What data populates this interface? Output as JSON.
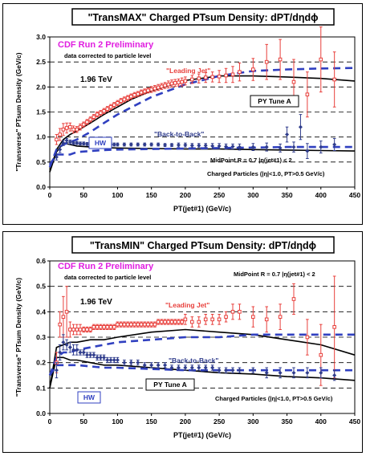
{
  "chart_data": [
    {
      "type": "scatter",
      "title": "\"TransMAX\" Charged PTsum Density: dPT/dηdϕ",
      "xlabel": "PT(jet#1)  (GeV/c)",
      "ylabel": "\"Transverse\" PTsum Density (GeV/c)",
      "xlim": [
        0,
        450
      ],
      "ylim": [
        0,
        3.0
      ],
      "x_ticks": [
        "0",
        "50",
        "100",
        "150",
        "200",
        "250",
        "300",
        "350",
        "400",
        "450"
      ],
      "y_ticks": [
        "0.0",
        "0.5",
        "1.0",
        "1.5",
        "2.0",
        "2.5",
        "3.0"
      ],
      "grid": "horizontal dashed",
      "annotations": {
        "preliminary": "CDF Run 2 Preliminary",
        "corrected": "data corrected to particle level",
        "energy": "1.96 TeV",
        "leading_jet": "\"Leading Jet\"",
        "back_to_back": "\"Back-to-Back\"",
        "pythia_label": "PY Tune A",
        "herwig_label": "HW",
        "midpoint": "MidPoint R = 0.7 |η(jet#1) < 2",
        "particles": "Charged Particles (|η|<1.0, PT>0.5 GeV/c)"
      },
      "series": [
        {
          "name": "\"Leading Jet\"",
          "color": "#e8403c",
          "x": [
            10,
            15,
            20,
            25,
            30,
            35,
            40,
            45,
            50,
            55,
            60,
            65,
            70,
            75,
            80,
            85,
            90,
            95,
            100,
            105,
            110,
            115,
            120,
            125,
            130,
            135,
            140,
            145,
            150,
            155,
            160,
            165,
            170,
            175,
            180,
            185,
            190,
            195,
            200,
            210,
            220,
            230,
            240,
            250,
            260,
            270,
            280,
            300,
            320,
            340,
            360,
            380,
            400,
            420
          ],
          "y": [
            0.95,
            1.05,
            1.15,
            1.18,
            1.2,
            1.15,
            1.15,
            1.2,
            1.25,
            1.3,
            1.35,
            1.4,
            1.45,
            1.48,
            1.52,
            1.56,
            1.6,
            1.64,
            1.68,
            1.72,
            1.75,
            1.78,
            1.81,
            1.84,
            1.86,
            1.89,
            1.91,
            1.93,
            1.95,
            1.97,
            1.99,
            2.01,
            2.03,
            2.05,
            2.07,
            2.08,
            2.09,
            2.1,
            2.12,
            2.15,
            2.17,
            2.19,
            2.2,
            2.21,
            2.23,
            2.25,
            2.3,
            2.35,
            2.5,
            2.55,
            2.1,
            1.85,
            2.55,
            2.15
          ],
          "err": [
            0.1,
            0.12,
            0.12,
            0.1,
            0.08,
            0.07,
            0.06,
            0.06,
            0.05,
            0.05,
            0.05,
            0.05,
            0.05,
            0.05,
            0.05,
            0.05,
            0.05,
            0.05,
            0.05,
            0.05,
            0.05,
            0.05,
            0.05,
            0.05,
            0.05,
            0.05,
            0.05,
            0.05,
            0.06,
            0.06,
            0.06,
            0.06,
            0.06,
            0.07,
            0.07,
            0.07,
            0.07,
            0.08,
            0.08,
            0.08,
            0.09,
            0.1,
            0.1,
            0.12,
            0.14,
            0.16,
            0.18,
            0.22,
            0.35,
            0.4,
            0.45,
            0.45,
            0.65,
            0.55
          ]
        },
        {
          "name": "\"Back-to-Back\"",
          "color": "#2f3c8c",
          "x": [
            10,
            15,
            20,
            25,
            30,
            35,
            40,
            45,
            50,
            55,
            60,
            65,
            70,
            75,
            80,
            85,
            90,
            95,
            100,
            110,
            120,
            130,
            140,
            150,
            160,
            170,
            180,
            190,
            200,
            210,
            220,
            230,
            240,
            250,
            260,
            270,
            280,
            300,
            320,
            340,
            350,
            360,
            370,
            380,
            400,
            420
          ],
          "y": [
            0.6,
            0.75,
            0.88,
            0.93,
            0.9,
            0.88,
            0.88,
            0.87,
            0.87,
            0.86,
            0.86,
            0.86,
            0.86,
            0.86,
            0.86,
            0.86,
            0.85,
            0.85,
            0.85,
            0.85,
            0.85,
            0.85,
            0.85,
            0.85,
            0.85,
            0.84,
            0.84,
            0.84,
            0.84,
            0.83,
            0.83,
            0.83,
            0.82,
            0.82,
            0.81,
            0.81,
            0.8,
            0.8,
            0.8,
            0.78,
            1.05,
            0.8,
            1.2,
            0.72,
            0.8,
            0.85
          ],
          "err": [
            0.06,
            0.06,
            0.05,
            0.04,
            0.04,
            0.03,
            0.03,
            0.03,
            0.03,
            0.03,
            0.03,
            0.03,
            0.03,
            0.03,
            0.03,
            0.03,
            0.03,
            0.03,
            0.03,
            0.03,
            0.03,
            0.03,
            0.03,
            0.03,
            0.03,
            0.03,
            0.03,
            0.04,
            0.04,
            0.04,
            0.04,
            0.04,
            0.05,
            0.05,
            0.05,
            0.05,
            0.06,
            0.07,
            0.08,
            0.08,
            0.15,
            0.1,
            0.25,
            0.15,
            0.12,
            0.12
          ]
        }
      ],
      "curves": [
        {
          "name": "PY Tune A",
          "style": "solid",
          "color": "#000000",
          "x": [
            0,
            10,
            20,
            30,
            40,
            50,
            60,
            80,
            100,
            120,
            150,
            200,
            250,
            300,
            350,
            400,
            450
          ],
          "y": [
            0.3,
            0.75,
            0.95,
            1.05,
            1.12,
            1.2,
            1.28,
            1.45,
            1.6,
            1.75,
            1.92,
            2.13,
            2.22,
            2.22,
            2.2,
            2.17,
            2.12
          ]
        },
        {
          "name": "PY Tune A",
          "style": "solid",
          "color": "#000000",
          "x": [
            0,
            10,
            20,
            30,
            40,
            60,
            80,
            100,
            150,
            200,
            250,
            300,
            350,
            400,
            450
          ],
          "y": [
            0.3,
            0.7,
            0.88,
            0.85,
            0.82,
            0.8,
            0.79,
            0.78,
            0.77,
            0.76,
            0.76,
            0.75,
            0.74,
            0.73,
            0.72
          ]
        },
        {
          "name": "HW",
          "style": "dashed",
          "color": "#3040c0",
          "x": [
            0,
            10,
            20,
            30,
            40,
            60,
            80,
            100,
            150,
            200,
            250,
            300,
            350,
            400,
            450
          ],
          "y": [
            0.4,
            0.75,
            0.85,
            0.9,
            0.95,
            1.1,
            1.28,
            1.45,
            1.8,
            2.05,
            2.22,
            2.32,
            2.35,
            2.37,
            2.38
          ]
        },
        {
          "name": "HW",
          "style": "dashed",
          "color": "#3040c0",
          "x": [
            0,
            10,
            20,
            30,
            40,
            60,
            80,
            100,
            150,
            200,
            250,
            300,
            350,
            400,
            450
          ],
          "y": [
            0.45,
            0.65,
            0.65,
            0.65,
            0.7,
            0.72,
            0.74,
            0.75,
            0.76,
            0.77,
            0.78,
            0.79,
            0.8,
            0.8,
            0.8
          ]
        }
      ]
    },
    {
      "type": "scatter",
      "title": "\"TransMIN\" Charged PTsum Density: dPT/dηdϕ",
      "xlabel": "PT(jet#1)  (GeV/c)",
      "ylabel": "\"Transverse\" PTsum Density (GeV/c)",
      "xlim": [
        0,
        450
      ],
      "ylim": [
        0,
        0.6
      ],
      "x_ticks": [
        "0",
        "50",
        "100",
        "150",
        "200",
        "250",
        "300",
        "350",
        "400",
        "450"
      ],
      "y_ticks": [
        "0.0",
        "0.1",
        "0.2",
        "0.3",
        "0.4",
        "0.5",
        "0.6"
      ],
      "grid": "horizontal dashed",
      "annotations": {
        "preliminary": "CDF Run 2 Preliminary",
        "corrected": "data corrected to particle level",
        "energy": "1.96 TeV",
        "leading_jet": "\"Leading Jet\"",
        "back_to_back": "\"Back-to-Back\"",
        "pythia_label": "PY Tune A",
        "herwig_label": "HW",
        "midpoint": "MidPoint R = 0.7 |η(jet#1) < 2",
        "particles": "Charged Particles (|η|<1.0, PT>0.5 GeV/c)"
      },
      "series": [
        {
          "name": "\"Leading Jet\"",
          "color": "#e8403c",
          "x": [
            10,
            15,
            20,
            25,
            30,
            35,
            40,
            45,
            50,
            55,
            60,
            65,
            70,
            75,
            80,
            85,
            90,
            95,
            100,
            105,
            110,
            115,
            120,
            125,
            130,
            135,
            140,
            145,
            150,
            155,
            160,
            165,
            170,
            175,
            180,
            185,
            190,
            195,
            200,
            210,
            220,
            230,
            240,
            250,
            260,
            270,
            280,
            300,
            320,
            340,
            360,
            380,
            400,
            420
          ],
          "y": [
            0.2,
            0.35,
            0.38,
            0.4,
            0.33,
            0.33,
            0.33,
            0.33,
            0.33,
            0.33,
            0.33,
            0.34,
            0.34,
            0.34,
            0.34,
            0.34,
            0.34,
            0.34,
            0.35,
            0.35,
            0.35,
            0.35,
            0.35,
            0.35,
            0.35,
            0.35,
            0.35,
            0.35,
            0.35,
            0.35,
            0.36,
            0.36,
            0.36,
            0.36,
            0.36,
            0.36,
            0.36,
            0.36,
            0.37,
            0.36,
            0.36,
            0.37,
            0.37,
            0.37,
            0.38,
            0.4,
            0.4,
            0.38,
            0.37,
            0.38,
            0.45,
            0.3,
            0.23,
            0.34
          ],
          "err": [
            0.04,
            0.05,
            0.08,
            0.1,
            0.03,
            0.02,
            0.02,
            0.02,
            0.01,
            0.01,
            0.01,
            0.01,
            0.01,
            0.01,
            0.01,
            0.01,
            0.01,
            0.01,
            0.01,
            0.01,
            0.01,
            0.01,
            0.01,
            0.01,
            0.01,
            0.01,
            0.01,
            0.01,
            0.01,
            0.01,
            0.01,
            0.01,
            0.01,
            0.01,
            0.01,
            0.01,
            0.01,
            0.01,
            0.02,
            0.02,
            0.02,
            0.02,
            0.02,
            0.02,
            0.02,
            0.03,
            0.03,
            0.04,
            0.05,
            0.05,
            0.06,
            0.07,
            0.12,
            0.2
          ]
        },
        {
          "name": "\"Back-to-Back\"",
          "color": "#2f3c8c",
          "x": [
            10,
            15,
            20,
            25,
            30,
            35,
            40,
            45,
            50,
            55,
            60,
            65,
            70,
            75,
            80,
            85,
            90,
            95,
            100,
            110,
            120,
            130,
            140,
            150,
            160,
            170,
            180,
            190,
            200,
            210,
            220,
            230,
            240,
            250,
            260,
            270,
            280,
            300,
            320,
            340,
            360,
            380,
            400,
            420
          ],
          "y": [
            0.17,
            0.24,
            0.28,
            0.27,
            0.26,
            0.25,
            0.25,
            0.24,
            0.24,
            0.23,
            0.23,
            0.23,
            0.22,
            0.22,
            0.22,
            0.21,
            0.21,
            0.21,
            0.21,
            0.2,
            0.2,
            0.2,
            0.19,
            0.19,
            0.19,
            0.19,
            0.18,
            0.18,
            0.18,
            0.18,
            0.18,
            0.18,
            0.18,
            0.17,
            0.17,
            0.17,
            0.17,
            0.17,
            0.16,
            0.16,
            0.16,
            0.16,
            0.16,
            0.15
          ],
          "err": [
            0.03,
            0.03,
            0.03,
            0.02,
            0.02,
            0.02,
            0.02,
            0.01,
            0.01,
            0.01,
            0.01,
            0.01,
            0.01,
            0.01,
            0.01,
            0.01,
            0.01,
            0.01,
            0.01,
            0.01,
            0.01,
            0.01,
            0.01,
            0.01,
            0.01,
            0.01,
            0.01,
            0.01,
            0.01,
            0.01,
            0.01,
            0.01,
            0.01,
            0.01,
            0.01,
            0.01,
            0.01,
            0.01,
            0.02,
            0.02,
            0.02,
            0.02,
            0.02,
            0.02
          ]
        }
      ],
      "curves": [
        {
          "name": "PY Tune A",
          "style": "solid",
          "color": "#000000",
          "x": [
            0,
            10,
            20,
            30,
            40,
            60,
            80,
            100,
            150,
            200,
            250,
            300,
            350,
            400,
            450
          ],
          "y": [
            0.1,
            0.26,
            0.27,
            0.28,
            0.28,
            0.29,
            0.29,
            0.3,
            0.32,
            0.33,
            0.32,
            0.31,
            0.29,
            0.27,
            0.23
          ]
        },
        {
          "name": "PY Tune A",
          "style": "solid",
          "color": "#000000",
          "x": [
            0,
            10,
            20,
            30,
            40,
            60,
            80,
            100,
            150,
            200,
            250,
            300,
            350,
            400,
            450
          ],
          "y": [
            0.1,
            0.22,
            0.22,
            0.21,
            0.21,
            0.2,
            0.19,
            0.19,
            0.18,
            0.17,
            0.16,
            0.155,
            0.145,
            0.14,
            0.13
          ]
        },
        {
          "name": "HW",
          "style": "dashed",
          "color": "#3040c0",
          "x": [
            0,
            10,
            20,
            30,
            40,
            60,
            80,
            100,
            150,
            200,
            250,
            300,
            350,
            400,
            450
          ],
          "y": [
            0.15,
            0.22,
            0.24,
            0.24,
            0.25,
            0.26,
            0.27,
            0.28,
            0.29,
            0.3,
            0.3,
            0.31,
            0.31,
            0.31,
            0.31
          ]
        },
        {
          "name": "HW",
          "style": "dashed",
          "color": "#3040c0",
          "x": [
            0,
            10,
            20,
            30,
            40,
            60,
            80,
            100,
            150,
            200,
            250,
            300,
            350,
            400,
            450
          ],
          "y": [
            0.15,
            0.19,
            0.19,
            0.19,
            0.19,
            0.185,
            0.18,
            0.18,
            0.175,
            0.17,
            0.17,
            0.17,
            0.17,
            0.17,
            0.17
          ]
        }
      ]
    }
  ]
}
